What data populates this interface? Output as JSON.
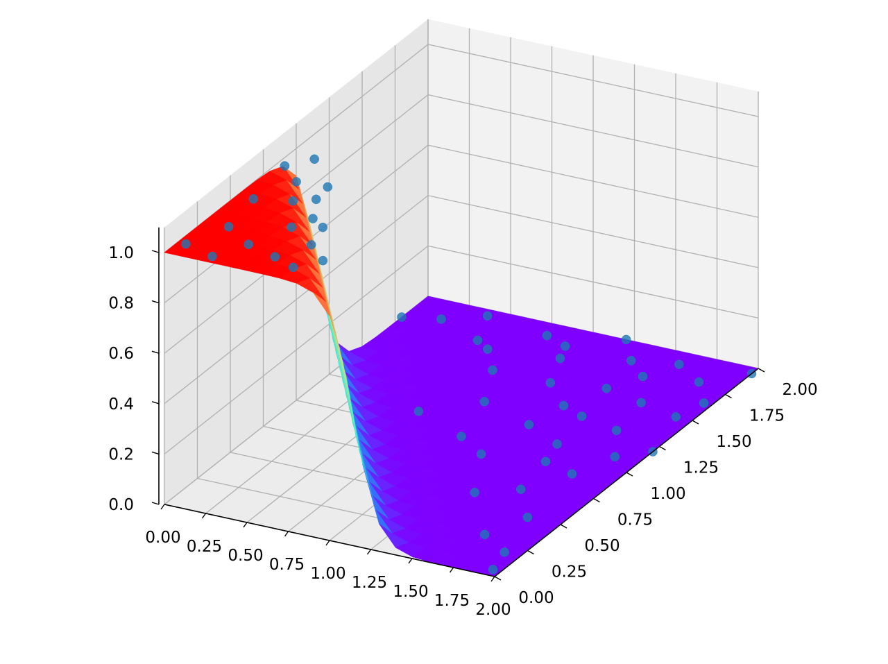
{
  "colors": {
    "pane": "#f2f2f2",
    "grid": "#b0b0b0",
    "scatter": "#1f77b4",
    "colormap": "rainbow"
  },
  "chart_data": {
    "type": "surface",
    "title": "",
    "xlabel": "",
    "ylabel": "",
    "zlabel": "",
    "grid": true,
    "legend": "none",
    "xlim": [
      0,
      2
    ],
    "ylim": [
      0,
      2
    ],
    "zlim": [
      0,
      1.1
    ],
    "x_ticks": [
      "0.00",
      "0.25",
      "0.50",
      "0.75",
      "1.00",
      "1.25",
      "1.50",
      "1.75",
      "2.00"
    ],
    "y_ticks": [
      "0.00",
      "0.25",
      "0.50",
      "0.75",
      "1.00",
      "1.25",
      "1.50",
      "1.75",
      "2.00"
    ],
    "z_ticks": [
      "0.0",
      "0.2",
      "0.4",
      "0.6",
      "0.8",
      "1.0"
    ],
    "surface": {
      "x": [
        0.0,
        0.1,
        0.2,
        0.3,
        0.4,
        0.5,
        0.6,
        0.7,
        0.8,
        0.9,
        1.0,
        1.1,
        1.2,
        1.3,
        1.4,
        1.5,
        1.6,
        1.7,
        1.8,
        1.9,
        2.0
      ],
      "y": [
        0.0,
        0.1,
        0.2,
        0.3,
        0.4,
        0.5,
        0.6,
        0.7,
        0.8,
        0.9,
        1.0,
        1.1,
        1.2,
        1.3,
        1.4,
        1.5,
        1.6,
        1.7,
        1.8,
        1.9,
        2.0
      ],
      "description_of_z": "z = 1 where x + y < ~1.1 and falls steeply to ~0 beyond"
    },
    "scatter_points": [
      {
        "x": 0.05,
        "y": 0.1,
        "z": 1.0
      },
      {
        "x": 0.15,
        "y": 0.3,
        "z": 1.0
      },
      {
        "x": 0.25,
        "y": 0.05,
        "z": 1.0
      },
      {
        "x": 0.35,
        "y": 0.2,
        "z": 1.0
      },
      {
        "x": 0.45,
        "y": 0.4,
        "z": 1.0
      },
      {
        "x": 0.55,
        "y": 0.15,
        "z": 1.0
      },
      {
        "x": 0.65,
        "y": 0.3,
        "z": 1.0
      },
      {
        "x": 0.1,
        "y": 0.55,
        "z": 1.0
      },
      {
        "x": 0.3,
        "y": 0.6,
        "z": 1.0
      },
      {
        "x": 0.5,
        "y": 0.5,
        "z": 1.0
      },
      {
        "x": 0.2,
        "y": 0.75,
        "z": 1.0
      },
      {
        "x": 0.05,
        "y": 0.85,
        "z": 1.0
      },
      {
        "x": 0.4,
        "y": 0.65,
        "z": 1.0
      },
      {
        "x": 0.7,
        "y": 0.1,
        "z": 1.0
      },
      {
        "x": 0.6,
        "y": 0.45,
        "z": 1.0
      },
      {
        "x": 0.15,
        "y": 0.95,
        "z": 1.0
      },
      {
        "x": 0.8,
        "y": 0.2,
        "z": 1.0
      },
      {
        "x": 0.35,
        "y": 0.8,
        "z": 0.98
      },
      {
        "x": 0.0,
        "y": 1.8,
        "z": 0.0
      },
      {
        "x": 0.2,
        "y": 1.85,
        "z": 0.0
      },
      {
        "x": 0.4,
        "y": 1.95,
        "z": 0.0
      },
      {
        "x": 0.6,
        "y": 1.7,
        "z": 0.0
      },
      {
        "x": 0.8,
        "y": 1.9,
        "z": 0.0
      },
      {
        "x": 1.0,
        "y": 1.75,
        "z": 0.0
      },
      {
        "x": 1.2,
        "y": 2.0,
        "z": 0.0
      },
      {
        "x": 1.4,
        "y": 1.6,
        "z": 0.0
      },
      {
        "x": 1.6,
        "y": 1.9,
        "z": 0.0
      },
      {
        "x": 1.8,
        "y": 1.8,
        "z": 0.0
      },
      {
        "x": 2.0,
        "y": 1.95,
        "z": 0.0
      },
      {
        "x": 1.9,
        "y": 1.5,
        "z": 0.0
      },
      {
        "x": 1.7,
        "y": 1.3,
        "z": 0.0
      },
      {
        "x": 1.5,
        "y": 1.1,
        "z": 0.0
      },
      {
        "x": 1.3,
        "y": 1.4,
        "z": 0.0
      },
      {
        "x": 1.1,
        "y": 1.55,
        "z": 0.0
      },
      {
        "x": 0.9,
        "y": 1.3,
        "z": 0.0
      },
      {
        "x": 1.6,
        "y": 0.7,
        "z": 0.0
      },
      {
        "x": 1.8,
        "y": 0.5,
        "z": 0.0
      },
      {
        "x": 1.9,
        "y": 0.2,
        "z": 0.0
      },
      {
        "x": 1.95,
        "y": 0.05,
        "z": 0.0
      },
      {
        "x": 1.7,
        "y": 0.3,
        "z": 0.0
      },
      {
        "x": 1.4,
        "y": 0.6,
        "z": 0.0
      },
      {
        "x": 1.2,
        "y": 0.9,
        "z": 0.0
      },
      {
        "x": 1.0,
        "y": 1.0,
        "z": 0.0
      },
      {
        "x": 1.55,
        "y": 0.95,
        "z": 0.0
      },
      {
        "x": 1.75,
        "y": 0.9,
        "z": 0.0
      },
      {
        "x": 1.85,
        "y": 1.1,
        "z": 0.0
      },
      {
        "x": 1.25,
        "y": 1.2,
        "z": 0.0
      },
      {
        "x": 1.45,
        "y": 1.35,
        "z": 0.0
      },
      {
        "x": 1.65,
        "y": 1.55,
        "z": 0.0
      },
      {
        "x": 1.95,
        "y": 1.65,
        "z": 0.0
      },
      {
        "x": 1.1,
        "y": 0.55,
        "z": 0.3
      },
      {
        "x": 2.0,
        "y": 1.2,
        "z": 0.0
      },
      {
        "x": 0.75,
        "y": 1.55,
        "z": 0.0
      },
      {
        "x": 0.5,
        "y": 1.75,
        "z": 0.0
      },
      {
        "x": 0.95,
        "y": 1.85,
        "z": 0.0
      },
      {
        "x": 1.35,
        "y": 1.85,
        "z": 0.0
      },
      {
        "x": 1.5,
        "y": 1.75,
        "z": 0.0
      }
    ]
  }
}
